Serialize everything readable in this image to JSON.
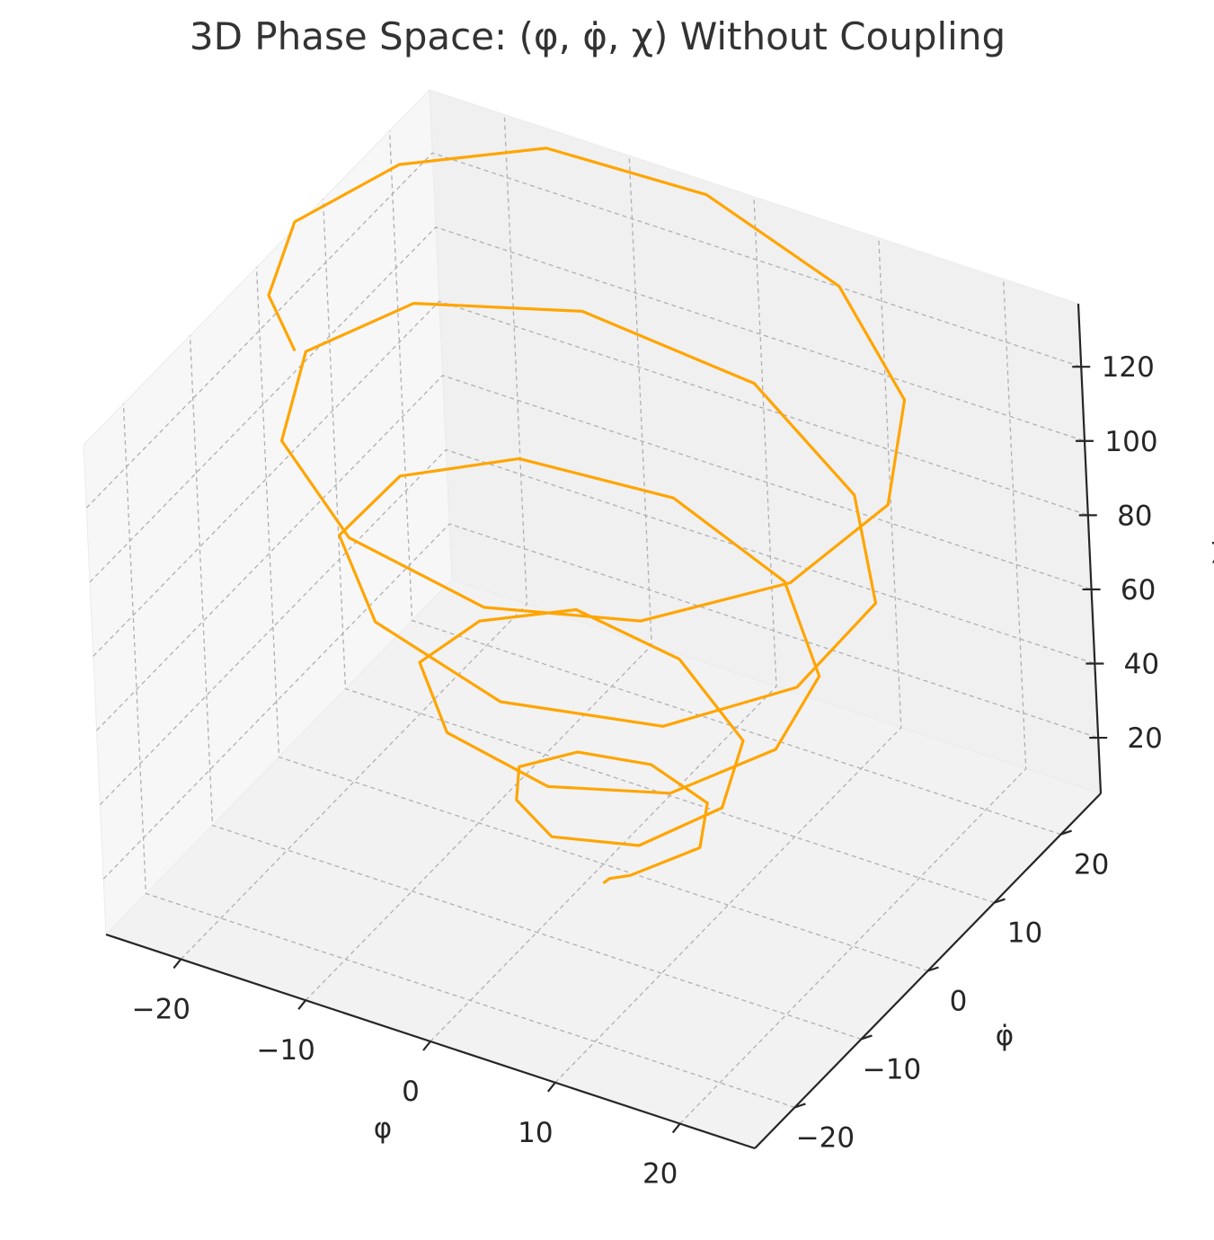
{
  "chart_data": {
    "type": "line",
    "projection": "3d",
    "title": "3D Phase Space: (φ, φ̇, χ) Without Coupling",
    "xlabel": "φ",
    "ylabel": "φ̇",
    "zlabel": "χ",
    "xlim": [
      -26,
      26
    ],
    "ylim": [
      -26,
      26
    ],
    "zlim": [
      5,
      137
    ],
    "xticks": [
      -20,
      -10,
      0,
      10,
      20
    ],
    "yticks": [
      -20,
      -10,
      0,
      10,
      20
    ],
    "zticks": [
      20,
      40,
      60,
      80,
      100,
      120
    ],
    "xtick_labels": [
      "−20",
      "−10",
      "0",
      "10",
      "20"
    ],
    "ytick_labels": [
      "−20",
      "−10",
      "0",
      "10",
      "20"
    ],
    "ztick_labels": [
      "20",
      "40",
      "60",
      "80",
      "100",
      "120"
    ],
    "grid": true,
    "line_color": "#FFA500",
    "series": [
      {
        "description_points": "spiral trajectory (x=φ, y=φ̇, z=χ)",
        "x": [
          0.0,
          1.0,
          3.0,
          6.5,
          5.0,
          0.0,
          -4.5,
          -6.5,
          -4.0,
          1.0,
          7.5,
          11.0,
          9.0,
          1.0,
          -7.5,
          -12.0,
          -12.5,
          -6.0,
          4.0,
          12.5,
          17.0,
          16.0,
          9.0,
          -2.0,
          -13.0,
          -18.5,
          -18.0,
          -10.0,
          3.0,
          15.0,
          21.5,
          22.0,
          15.0,
          3.0,
          -11.0,
          -21.0,
          -24.0,
          -19.5,
          -9.0,
          4.0,
          15.0,
          22.5,
          24.5,
          20.0,
          10.0,
          -3.0,
          -15.0,
          -22.5,
          -25.0,
          -22.0,
          -17.0
        ],
        "y": [
          0.0,
          -1.0,
          -1.5,
          2.5,
          6.5,
          7.5,
          5.0,
          0.0,
          -5.0,
          -9.0,
          -8.0,
          -2.0,
          5.0,
          10.5,
          11.0,
          5.0,
          -3.0,
          -11.0,
          -14.5,
          -12.0,
          -4.5,
          4.0,
          12.0,
          16.0,
          13.5,
          6.0,
          -4.0,
          -13.5,
          -19.0,
          -17.0,
          -9.0,
          2.0,
          12.0,
          19.5,
          20.0,
          13.5,
          3.0,
          -9.0,
          -18.5,
          -22.5,
          -19.5,
          -11.0,
          0.0,
          11.0,
          20.0,
          24.5,
          23.0,
          15.0,
          4.0,
          -5.5,
          -11.0
        ],
        "z": [
          0.0,
          4.0,
          8.0,
          12.0,
          15.0,
          18.0,
          21.0,
          24.0,
          27.0,
          30.0,
          33.0,
          36.0,
          39.0,
          42.0,
          45.0,
          48.0,
          51.0,
          54.0,
          57.0,
          60.0,
          63.0,
          66.0,
          69.0,
          72.0,
          75.0,
          78.0,
          81.0,
          84.0,
          87.0,
          90.0,
          93.0,
          96.0,
          99.0,
          102.0,
          105.0,
          108.0,
          111.0,
          114.0,
          117.0,
          120.0,
          123.0,
          126.0,
          129.0,
          132.0,
          135.0,
          137.0,
          139.0,
          141.0,
          143.0,
          144.0,
          145.0
        ]
      }
    ]
  }
}
